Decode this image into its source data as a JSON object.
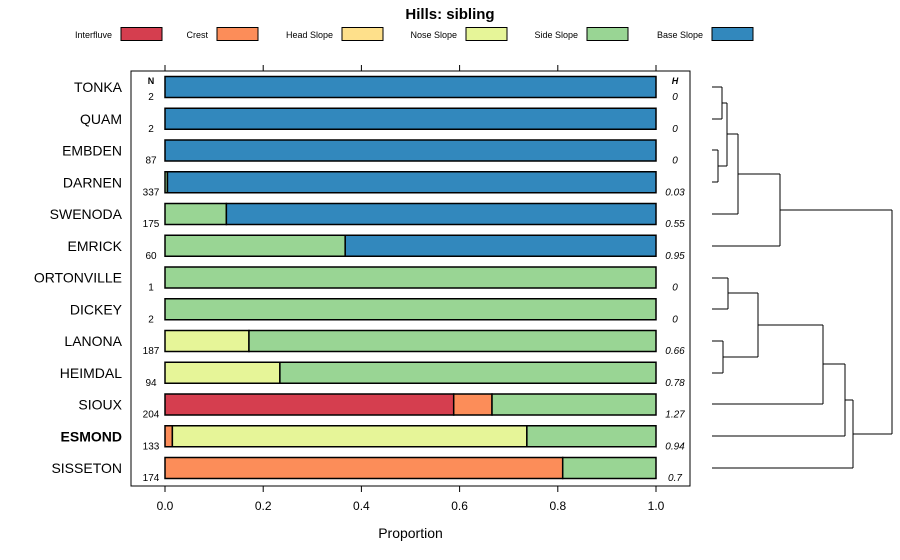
{
  "chart_data": {
    "type": "bar",
    "orientation": "horizontal",
    "stacked": true,
    "title": "Hills: sibling",
    "xlabel": "Proportion",
    "ylabel": "",
    "xlim": [
      0,
      1
    ],
    "xticks": [
      "0.0",
      "0.2",
      "0.4",
      "0.6",
      "0.8",
      "1.0"
    ],
    "n_header": "N",
    "h_header": "H",
    "legend_position": "top",
    "series": [
      {
        "name": "Interfluve",
        "color": "#D53E4F"
      },
      {
        "name": "Crest",
        "color": "#FC8D59"
      },
      {
        "name": "Head Slope",
        "color": "#FEE08B"
      },
      {
        "name": "Nose Slope",
        "color": "#E6F598"
      },
      {
        "name": "Side Slope",
        "color": "#99D594"
      },
      {
        "name": "Base Slope",
        "color": "#3288BD"
      }
    ],
    "rows": [
      {
        "label": "TONKA",
        "n": "2",
        "h": "0",
        "bold": false,
        "values": [
          0,
          0,
          0,
          0,
          0,
          1.0
        ]
      },
      {
        "label": "QUAM",
        "n": "2",
        "h": "0",
        "bold": false,
        "values": [
          0,
          0,
          0,
          0,
          0,
          1.0
        ]
      },
      {
        "label": "EMBDEN",
        "n": "87",
        "h": "0",
        "bold": false,
        "values": [
          0,
          0,
          0,
          0,
          0,
          1.0
        ]
      },
      {
        "label": "DARNEN",
        "n": "337",
        "h": "0.03",
        "bold": false,
        "values": [
          0,
          0,
          0,
          0,
          0.005,
          0.995
        ]
      },
      {
        "label": "SWENODA",
        "n": "175",
        "h": "0.55",
        "bold": false,
        "values": [
          0,
          0,
          0,
          0,
          0.125,
          0.875
        ]
      },
      {
        "label": "EMRICK",
        "n": "60",
        "h": "0.95",
        "bold": false,
        "values": [
          0,
          0,
          0,
          0,
          0.367,
          0.633
        ]
      },
      {
        "label": "ORTONVILLE",
        "n": "1",
        "h": "0",
        "bold": false,
        "values": [
          0,
          0,
          0,
          0,
          1.0,
          0
        ]
      },
      {
        "label": "DICKEY",
        "n": "2",
        "h": "0",
        "bold": false,
        "values": [
          0,
          0,
          0,
          0,
          1.0,
          0
        ]
      },
      {
        "label": "LANONA",
        "n": "187",
        "h": "0.66",
        "bold": false,
        "values": [
          0,
          0,
          0,
          0.171,
          0.829,
          0
        ]
      },
      {
        "label": "HEIMDAL",
        "n": "94",
        "h": "0.78",
        "bold": false,
        "values": [
          0,
          0,
          0,
          0.234,
          0.766,
          0
        ]
      },
      {
        "label": "SIOUX",
        "n": "204",
        "h": "1.27",
        "bold": false,
        "values": [
          0.588,
          0.078,
          0,
          0,
          0.334,
          0
        ]
      },
      {
        "label": "ESMOND",
        "n": "133",
        "h": "0.94",
        "bold": true,
        "values": [
          0,
          0.015,
          0,
          0.722,
          0.263,
          0
        ]
      },
      {
        "label": "SISSETON",
        "n": "174",
        "h": "0.7",
        "bold": false,
        "values": [
          0,
          0.81,
          0,
          0,
          0.19,
          0
        ]
      }
    ]
  }
}
